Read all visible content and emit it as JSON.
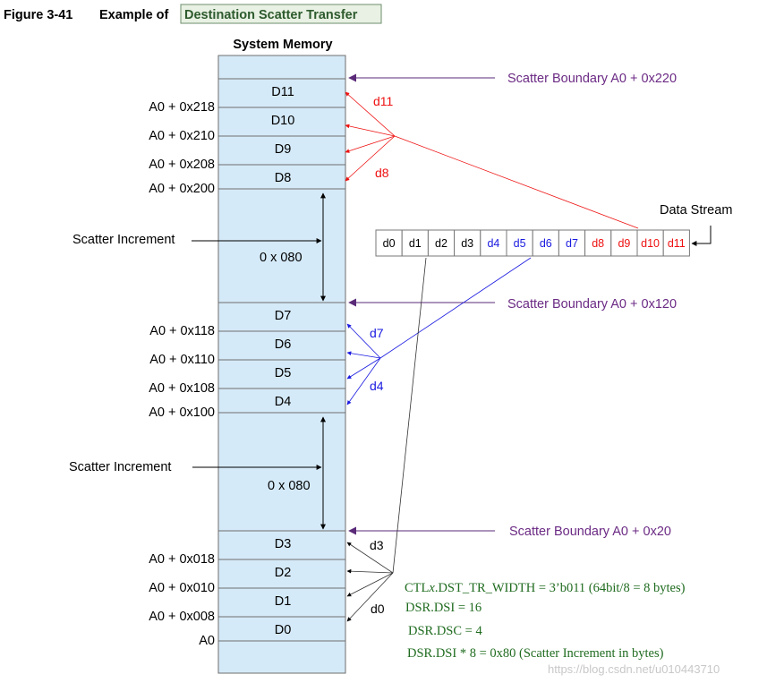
{
  "figure": {
    "number": "Figure 3-41",
    "title_prefix": "Example of",
    "title_highlight": "Destination Scatter Transfer"
  },
  "memory": {
    "header": "System Memory",
    "blocks": [
      {
        "name": "d11-block",
        "label": "D11"
      },
      {
        "name": "d10-block",
        "label": "D10"
      },
      {
        "name": "d9-block",
        "label": "D9"
      },
      {
        "name": "d8-block",
        "label": "D8"
      },
      {
        "name": "d7-block",
        "label": "D7"
      },
      {
        "name": "d6-block",
        "label": "D6"
      },
      {
        "name": "d5-block",
        "label": "D5"
      },
      {
        "name": "d4-block",
        "label": "D4"
      },
      {
        "name": "d3-block",
        "label": "D3"
      },
      {
        "name": "d2-block",
        "label": "D2"
      },
      {
        "name": "d1-block",
        "label": "D1"
      },
      {
        "name": "d0-block",
        "label": "D0"
      }
    ],
    "addresses": [
      "A0 + 0x218",
      "A0 + 0x210",
      "A0 + 0x208",
      "A0 + 0x200",
      "A0 + 0x118",
      "A0 + 0x110",
      "A0 + 0x108",
      "A0 + 0x100",
      "A0 + 0x018",
      "A0 + 0x010",
      "A0 + 0x008",
      "A0"
    ],
    "gaps": [
      "0 x 080",
      "0 x 080"
    ]
  },
  "boundaries": [
    "Scatter Boundary A0 + 0x220",
    "Scatter Boundary A0 + 0x120",
    "Scatter Boundary A0 + 0x20"
  ],
  "scatter_increment_label": "Scatter Increment",
  "data_stream": {
    "label": "Data Stream",
    "cells": [
      "d0",
      "d1",
      "d2",
      "d3",
      "d4",
      "d5",
      "d6",
      "d7",
      "d8",
      "d9",
      "d10",
      "d11"
    ]
  },
  "fan_labels": {
    "d11": "d11",
    "d8": "d8",
    "d7": "d7",
    "d4": "d4",
    "d3": "d3",
    "d0": "d0"
  },
  "notes": {
    "line1_prefix": "CTL",
    "line1_var": "x",
    "line1_rest": ".DST_TR_WIDTH = 3’b011 (64bit/8 = 8 bytes)",
    "line2": "DSR.DSI = 16",
    "line3": "DSR.DSC = 4",
    "line4": "DSR.DSI * 8 = 0x80 (Scatter Increment in bytes)"
  },
  "watermark": "https://blog.csdn.net/u010443710",
  "colors": {
    "memory_fill": "#d5eaf8",
    "memory_stroke": "#6e6e6e",
    "boundary_text": "#6b2a84",
    "boundary_arrow": "#5a2a78",
    "group_high": "#ee1111",
    "group_mid": "#1a1ae0",
    "group_low": "#000000",
    "notes_text": "#1f6b1f",
    "title_box_fill": "#e8f1e3",
    "title_box_stroke": "#6e8e6e",
    "title_box_text": "#2d5a2d"
  }
}
